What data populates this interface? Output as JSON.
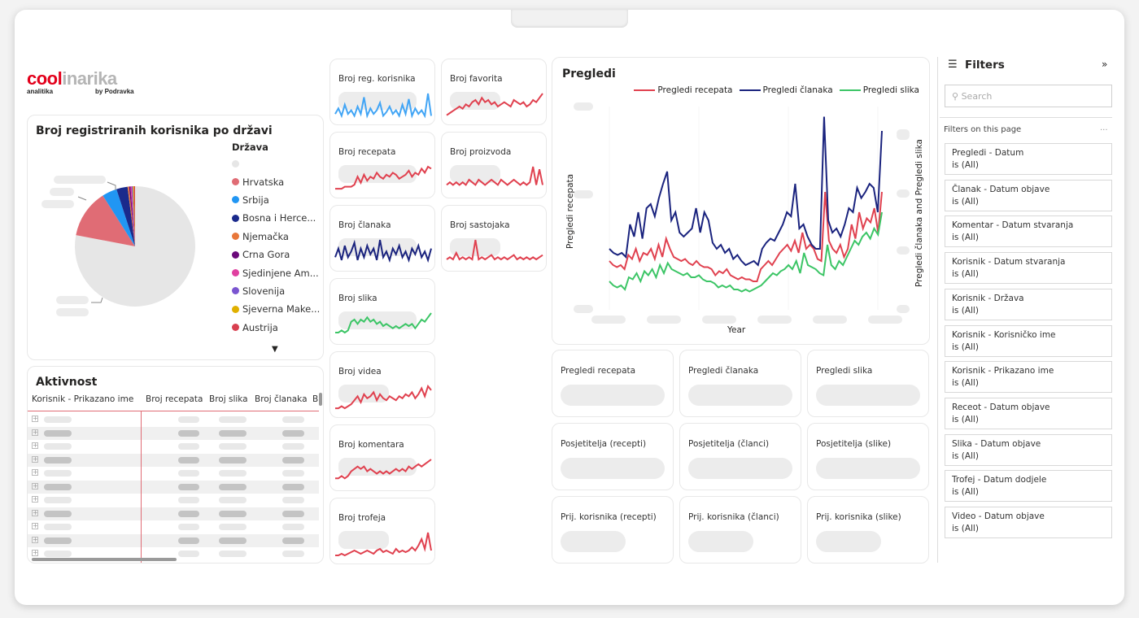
{
  "logo": {
    "brand_red": "cool",
    "brand_gray": "inarika",
    "sub_left": "analitika",
    "sub_right": "by Podravka"
  },
  "pie": {
    "title": "Broj registriranih korisnika po državi",
    "legend_title": "Država",
    "legend": [
      {
        "label": "",
        "color": "#e6e6e6"
      },
      {
        "label": "Hrvatska",
        "color": "#e06c75"
      },
      {
        "label": "Srbija",
        "color": "#2196f3"
      },
      {
        "label": "Bosna i Herce...",
        "color": "#1a2a8c"
      },
      {
        "label": "Njemačka",
        "color": "#e8773a"
      },
      {
        "label": "Crna Gora",
        "color": "#6b0a7a"
      },
      {
        "label": "Sjedinjene Am...",
        "color": "#e040a0"
      },
      {
        "label": "Slovenija",
        "color": "#7a55d0"
      },
      {
        "label": "Sjeverna Make...",
        "color": "#e0b000"
      },
      {
        "label": "Austrija",
        "color": "#d84050"
      }
    ]
  },
  "chart_data": [
    {
      "type": "pie",
      "title": "Broj registriranih korisnika po državi",
      "categories": [
        "(blank)",
        "Hrvatska",
        "Srbija",
        "Bosna i Herce...",
        "Njemačka",
        "Crna Gora",
        "Sjedinjene Am...",
        "Slovenija",
        "Sjeverna Make...",
        "Austrija"
      ],
      "values": [
        78,
        13,
        4,
        3,
        0.4,
        0.4,
        0.3,
        0.3,
        0.3,
        0.3
      ]
    },
    {
      "type": "line",
      "title": "Pregledi",
      "xlabel": "Year",
      "ylabel": "Pregledi recepata",
      "ylabel_right": "Pregledi članaka and Pregledi slika",
      "series": [
        {
          "name": "Pregledi recepata",
          "color": "#e0414f",
          "values": [
            24,
            22,
            21,
            22,
            20,
            27,
            25,
            30,
            24,
            28,
            27,
            30,
            25,
            32,
            26,
            35,
            30,
            26,
            25,
            24,
            25,
            23,
            22,
            24,
            22,
            21,
            21,
            20,
            17,
            19,
            18,
            20,
            17,
            16,
            15,
            16,
            15,
            15,
            14,
            14,
            20,
            22,
            24,
            22,
            25,
            28,
            30,
            32,
            29,
            34,
            28,
            38,
            30,
            32,
            30,
            25,
            24,
            58,
            34,
            30,
            28,
            32,
            26,
            30,
            42,
            35,
            48,
            40,
            45,
            43,
            50,
            38,
            58
          ]
        },
        {
          "name": "Pregledi članaka",
          "color": "#1a237e",
          "values": [
            30,
            28,
            27,
            28,
            26,
            42,
            36,
            48,
            35,
            50,
            52,
            46,
            55,
            62,
            68,
            44,
            48,
            38,
            36,
            38,
            40,
            50,
            38,
            48,
            44,
            33,
            30,
            32,
            28,
            30,
            25,
            27,
            24,
            22,
            23,
            24,
            22,
            30,
            33,
            35,
            34,
            38,
            42,
            48,
            46,
            62,
            40,
            42,
            36,
            32,
            30,
            30,
            95,
            44,
            38,
            40,
            36,
            42,
            50,
            48,
            60,
            55,
            58,
            62,
            60,
            48,
            88
          ]
        },
        {
          "name": "Pregledi slika",
          "color": "#3cc566",
          "values": [
            14,
            12,
            11,
            12,
            10,
            16,
            15,
            18,
            14,
            19,
            17,
            20,
            16,
            22,
            18,
            23,
            20,
            19,
            18,
            17,
            18,
            16,
            16,
            17,
            15,
            14,
            14,
            13,
            11,
            12,
            11,
            12,
            10,
            10,
            9,
            10,
            9,
            10,
            11,
            12,
            14,
            16,
            18,
            17,
            19,
            20,
            22,
            20,
            24,
            18,
            28,
            22,
            21,
            20,
            18,
            17,
            32,
            22,
            20,
            24,
            22,
            26,
            30,
            34,
            32,
            36,
            38,
            35,
            40,
            37,
            48
          ]
        }
      ]
    }
  ],
  "sparks": [
    {
      "label": "Broj reg. korisnika",
      "color": "#42a5f5",
      "values": [
        3,
        6,
        2,
        8,
        3,
        5,
        2,
        7,
        3,
        12,
        2,
        6,
        3,
        5,
        9,
        2,
        4,
        7,
        3,
        5,
        2,
        8,
        3,
        11,
        2,
        6,
        3,
        5,
        2,
        14,
        2
      ]
    },
    {
      "label": "Broj favorita",
      "color": "#e0414f",
      "values": [
        2,
        3,
        4,
        5,
        6,
        5,
        7,
        6,
        8,
        9,
        7,
        10,
        8,
        9,
        7,
        8,
        6,
        7,
        8,
        7,
        6,
        9,
        8,
        7,
        8,
        6,
        7,
        9,
        8,
        10,
        12
      ]
    },
    {
      "label": "Broj recepata",
      "color": "#e0414f",
      "values": [
        2,
        2,
        2,
        3,
        3,
        3,
        4,
        8,
        5,
        9,
        6,
        8,
        7,
        10,
        8,
        7,
        9,
        8,
        10,
        9,
        7,
        8,
        9,
        11,
        8,
        10,
        9,
        12,
        10,
        13,
        12
      ]
    },
    {
      "label": "Broj proizvoda",
      "color": "#e0414f",
      "values": [
        3,
        4,
        3,
        4,
        3,
        4,
        3,
        5,
        4,
        3,
        5,
        4,
        3,
        4,
        5,
        4,
        3,
        5,
        4,
        3,
        4,
        5,
        4,
        3,
        4,
        3,
        4,
        10,
        3,
        9,
        3
      ]
    },
    {
      "label": "Broj članaka",
      "color": "#1a237e",
      "values": [
        3,
        6,
        2,
        7,
        3,
        5,
        8,
        2,
        6,
        3,
        7,
        4,
        6,
        2,
        9,
        3,
        5,
        2,
        6,
        4,
        7,
        3,
        5,
        2,
        6,
        4,
        7,
        3,
        5,
        2,
        6
      ]
    },
    {
      "label": "Broj sastojaka",
      "color": "#e0414f",
      "values": [
        3,
        4,
        3,
        6,
        3,
        4,
        3,
        4,
        3,
        12,
        3,
        4,
        3,
        4,
        5,
        3,
        4,
        3,
        4,
        3,
        4,
        5,
        3,
        4,
        3,
        4,
        3,
        4,
        3,
        4,
        5
      ]
    },
    {
      "label": "Broj slika",
      "color": "#3cc566",
      "values": [
        3,
        3,
        4,
        3,
        4,
        8,
        9,
        7,
        9,
        8,
        10,
        8,
        9,
        7,
        8,
        6,
        7,
        6,
        5,
        6,
        5,
        6,
        7,
        6,
        7,
        5,
        7,
        9,
        8,
        10,
        12
      ]
    },
    {
      "label": "Broj videa",
      "color": "#e0414f",
      "values": [
        2,
        2,
        3,
        2,
        3,
        4,
        6,
        8,
        5,
        9,
        7,
        8,
        10,
        6,
        9,
        7,
        6,
        8,
        7,
        6,
        8,
        7,
        9,
        8,
        10,
        7,
        9,
        12,
        8,
        13,
        11
      ]
    },
    {
      "label": "Broj komentara",
      "color": "#e0414f",
      "values": [
        3,
        3,
        4,
        3,
        4,
        6,
        7,
        8,
        7,
        8,
        6,
        7,
        6,
        5,
        6,
        5,
        6,
        5,
        6,
        7,
        6,
        7,
        6,
        8,
        7,
        8,
        9,
        8,
        9,
        10,
        11
      ]
    },
    {
      "label": "Broj trofeja",
      "color": "#e0414f",
      "values": [
        2,
        2,
        3,
        2,
        3,
        4,
        5,
        4,
        3,
        4,
        5,
        4,
        3,
        5,
        6,
        4,
        5,
        4,
        3,
        6,
        4,
        5,
        4,
        5,
        7,
        5,
        8,
        12,
        6,
        16,
        5
      ]
    }
  ],
  "chart": {
    "title": "Pregledi",
    "xlabel": "Year",
    "ylabel_left": "Pregledi recepata",
    "ylabel_right": "Pregledi članaka and Pregledi slika"
  },
  "kpis": [
    "Pregledi recepata",
    "Pregledi članaka",
    "Pregledi slika",
    "Posjetitelja (recepti)",
    "Posjetitelja (članci)",
    "Posjetitelja (slike)",
    "Prij. korisnika (recepti)",
    "Prij. korisnika (članci)",
    "Prij. korisnika (slike)"
  ],
  "table": {
    "title": "Aktivnost",
    "columns": [
      "Korisnik - Prikazano ime",
      "Broj recepata",
      "Broj slika",
      "Broj članaka",
      "Br"
    ],
    "row_count": 11
  },
  "filters": {
    "title": "Filters",
    "collapse": "»",
    "search_placeholder": "Search",
    "section": "Filters on this page",
    "more": "...",
    "items": [
      {
        "name": "Pregledi - Datum",
        "state": "is (All)"
      },
      {
        "name": "Članak - Datum objave",
        "state": "is (All)"
      },
      {
        "name": "Komentar - Datum stvaranja",
        "state": "is (All)"
      },
      {
        "name": "Korisnik - Datum stvaranja",
        "state": "is (All)"
      },
      {
        "name": "Korisnik - Država",
        "state": "is (All)"
      },
      {
        "name": "Korisnik - Korisničko ime",
        "state": "is (All)"
      },
      {
        "name": "Korisnik - Prikazano ime",
        "state": "is (All)"
      },
      {
        "name": "Receot - Datum objave",
        "state": "is (All)"
      },
      {
        "name": "Slika - Datum objave",
        "state": "is (All)"
      },
      {
        "name": "Trofej - Datum dodjele",
        "state": "is (All)"
      },
      {
        "name": "Video - Datum objave",
        "state": "is (All)"
      }
    ]
  }
}
